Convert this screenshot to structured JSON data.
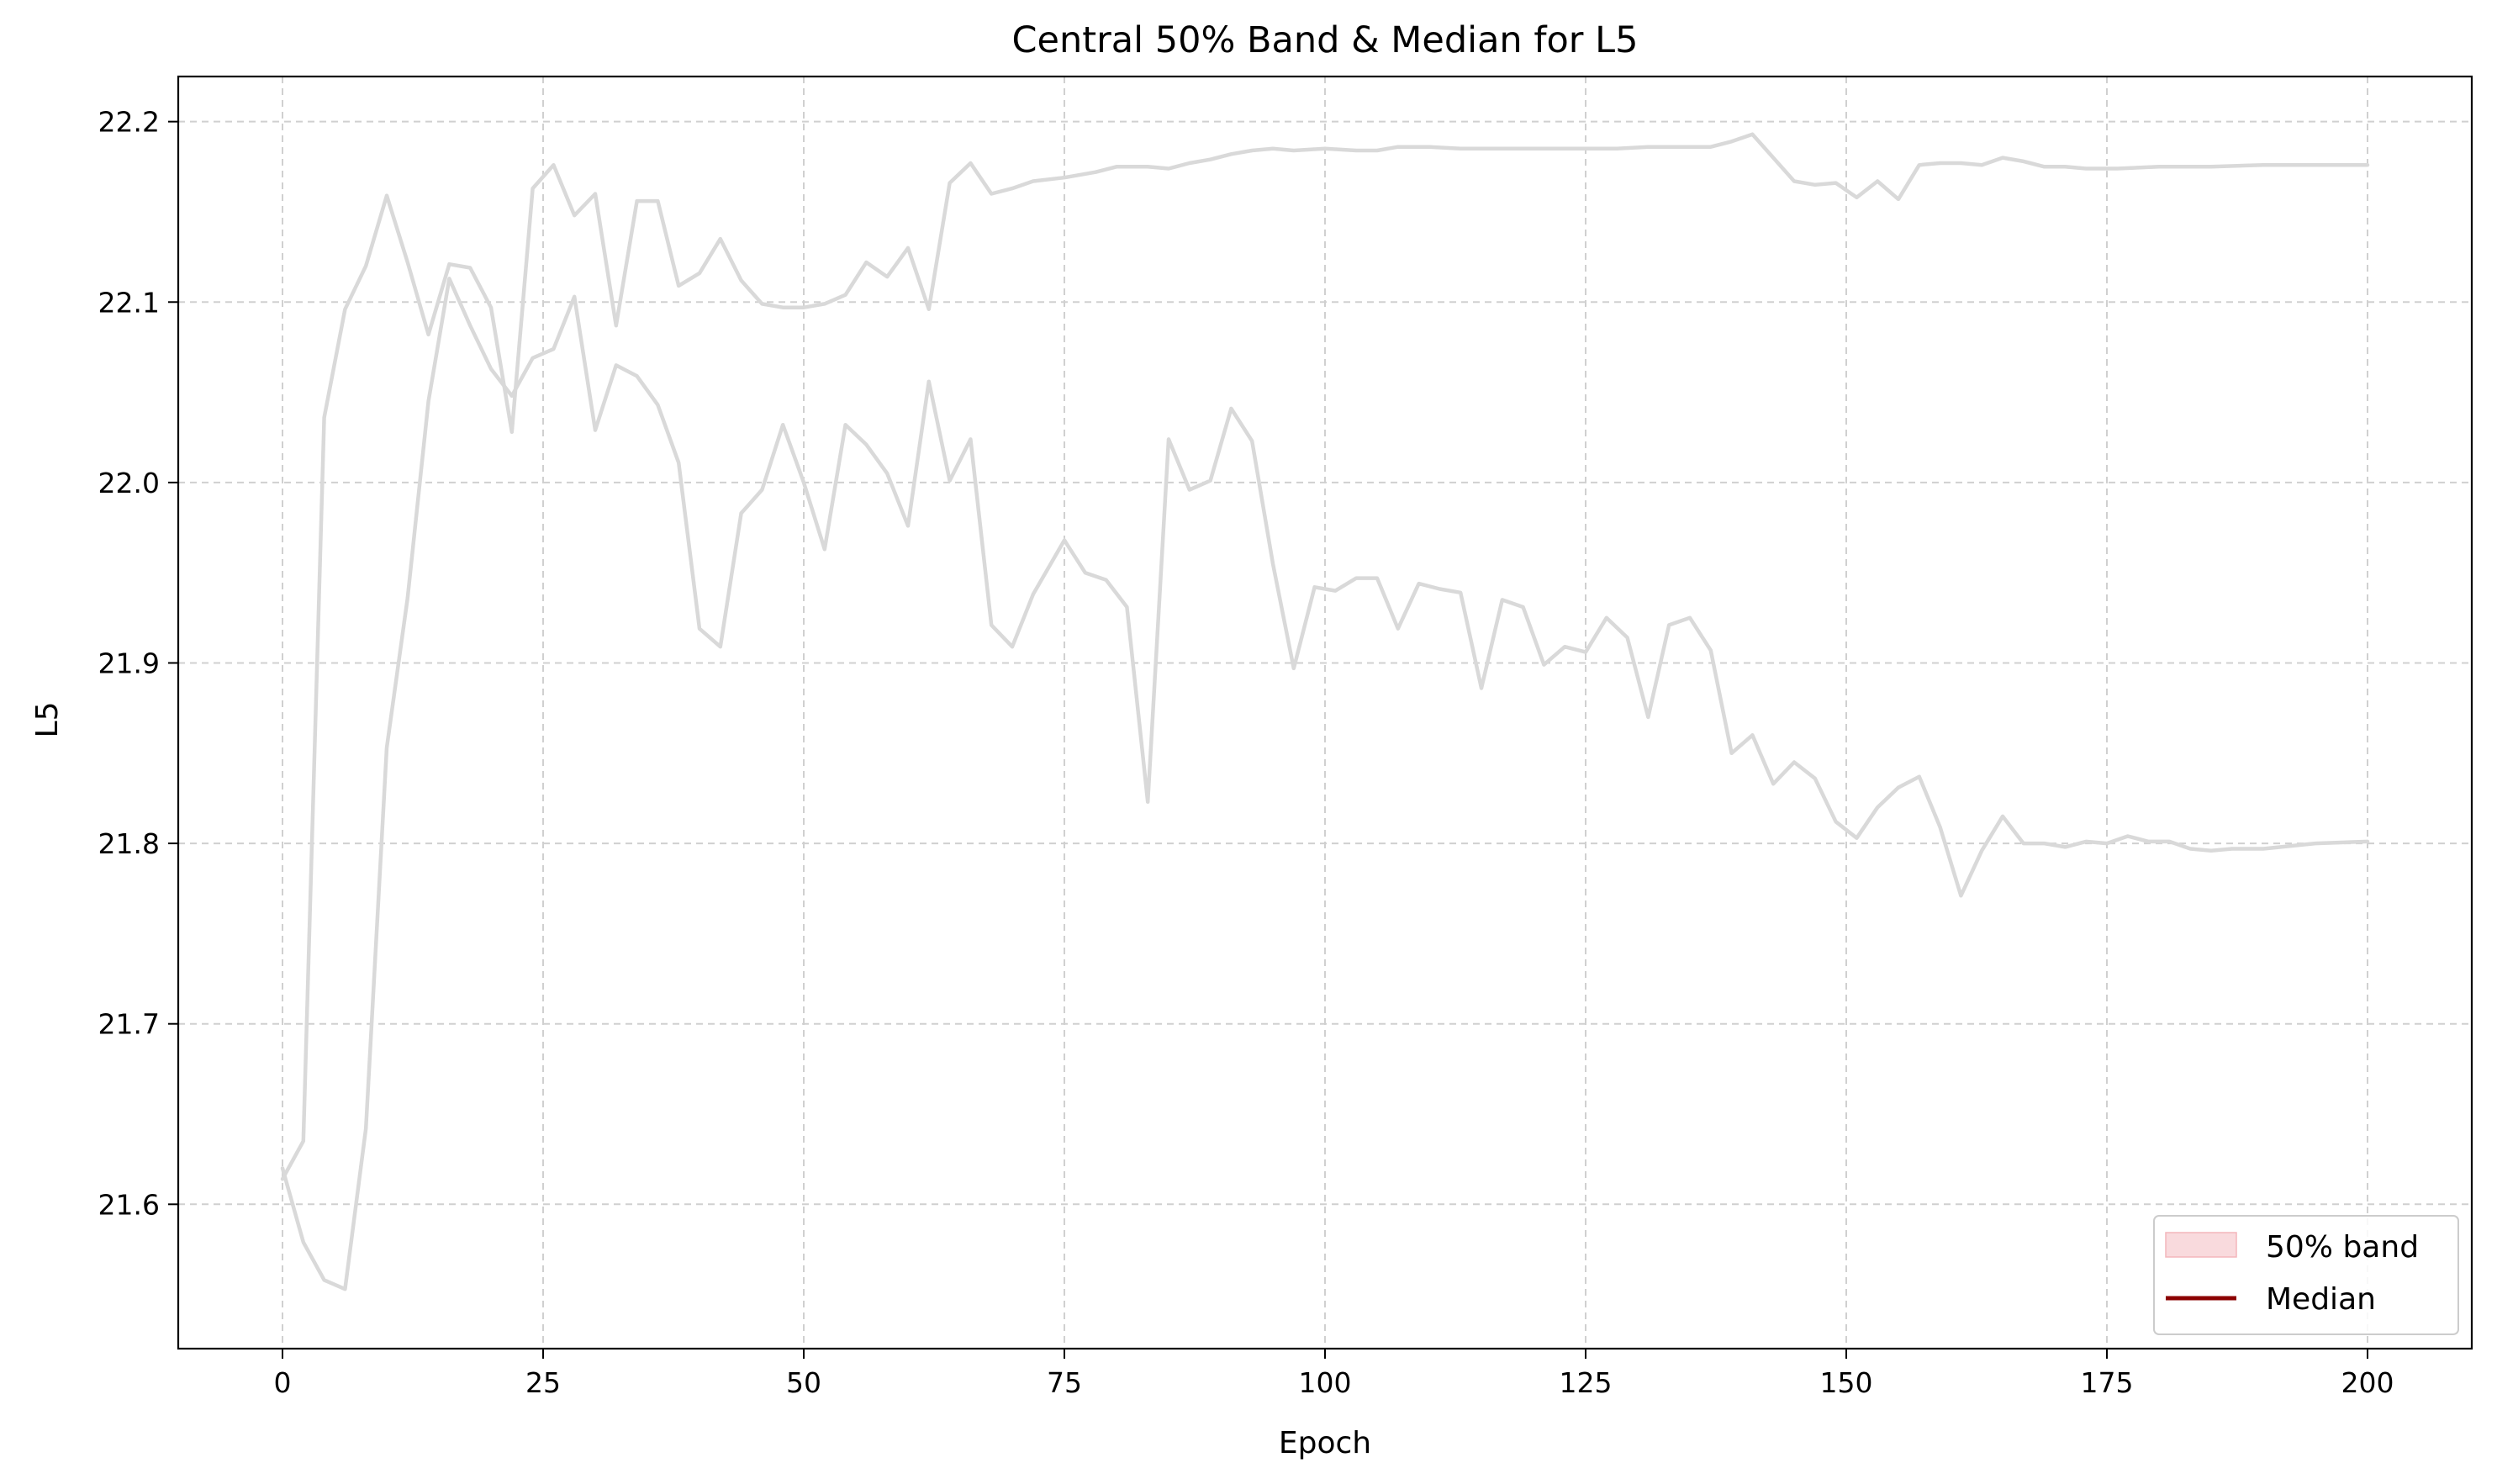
{
  "chart_data": {
    "type": "line",
    "title": "Central 50% Band & Median for L5",
    "xlabel": "Epoch",
    "ylabel": "L5",
    "xlim": [
      -10,
      210
    ],
    "ylim": [
      21.52,
      22.225
    ],
    "xticks": [
      0,
      25,
      50,
      75,
      100,
      125,
      150,
      175,
      200
    ],
    "yticks": [
      21.6,
      21.7,
      21.8,
      21.9,
      22.0,
      22.1,
      22.2
    ],
    "grid": true,
    "legend_position": "lower-right",
    "legend": [
      {
        "label": "50% band",
        "kind": "band",
        "color": "#f4b6bb"
      },
      {
        "label": "Median",
        "kind": "line",
        "color": "#8b0000"
      }
    ],
    "series": [
      {
        "role": "band-upper",
        "color": "#d9d9d9",
        "x": [
          0,
          2,
          4,
          6,
          8,
          10,
          12,
          14,
          16,
          18,
          20,
          22,
          24,
          26,
          28,
          30,
          32,
          34,
          36,
          38,
          40,
          42,
          44,
          46,
          48,
          50,
          52,
          54,
          56,
          58,
          60,
          62,
          64,
          66,
          68,
          70,
          72,
          75,
          78,
          80,
          83,
          85,
          87,
          89,
          91,
          93,
          95,
          97,
          100,
          103,
          105,
          107,
          110,
          113,
          115,
          118,
          121,
          125,
          128,
          131,
          134,
          137,
          139,
          141,
          143,
          145,
          147,
          149,
          151,
          153,
          155,
          157,
          159,
          161,
          163,
          165,
          167,
          169,
          171,
          173,
          176,
          180,
          185,
          190,
          195,
          200
        ],
        "y": [
          21.614,
          21.635,
          22.036,
          22.096,
          22.12,
          22.159,
          22.122,
          22.082,
          22.121,
          22.119,
          22.097,
          22.028,
          22.163,
          22.176,
          22.148,
          22.16,
          22.087,
          22.156,
          22.156,
          22.109,
          22.116,
          22.135,
          22.112,
          22.099,
          22.097,
          22.097,
          22.099,
          22.104,
          22.122,
          22.114,
          22.13,
          22.096,
          22.166,
          22.177,
          22.16,
          22.163,
          22.167,
          22.169,
          22.172,
          22.175,
          22.175,
          22.174,
          22.177,
          22.179,
          22.182,
          22.184,
          22.185,
          22.184,
          22.185,
          22.184,
          22.184,
          22.186,
          22.186,
          22.185,
          22.185,
          22.185,
          22.185,
          22.185,
          22.185,
          22.186,
          22.186,
          22.186,
          22.189,
          22.193,
          22.18,
          22.167,
          22.165,
          22.166,
          22.158,
          22.167,
          22.157,
          22.176,
          22.177,
          22.177,
          22.176,
          22.18,
          22.178,
          22.175,
          22.175,
          22.174,
          22.174,
          22.175,
          22.175,
          22.176,
          22.176,
          22.176
        ]
      },
      {
        "role": "band-lower",
        "color": "#d9d9d9",
        "x": [
          0,
          2,
          4,
          6,
          8,
          10,
          12,
          14,
          16,
          18,
          20,
          22,
          24,
          26,
          28,
          30,
          32,
          34,
          36,
          38,
          40,
          42,
          44,
          46,
          48,
          50,
          52,
          54,
          56,
          58,
          60,
          62,
          64,
          66,
          68,
          70,
          72,
          75,
          77,
          79,
          81,
          83,
          85,
          87,
          89,
          91,
          93,
          95,
          97,
          99,
          101,
          103,
          105,
          107,
          109,
          111,
          113,
          115,
          117,
          119,
          121,
          123,
          125,
          127,
          129,
          131,
          133,
          135,
          137,
          139,
          141,
          143,
          145,
          147,
          149,
          151,
          153,
          155,
          157,
          159,
          161,
          163,
          165,
          167,
          169,
          171,
          173,
          175,
          177,
          179,
          181,
          183,
          185,
          187,
          190,
          195,
          200
        ],
        "y": [
          21.62,
          21.579,
          21.558,
          21.553,
          21.642,
          21.853,
          21.936,
          22.045,
          22.113,
          22.087,
          22.063,
          22.048,
          22.069,
          22.074,
          22.103,
          22.029,
          22.065,
          22.059,
          22.043,
          22.011,
          21.919,
          21.909,
          21.983,
          21.996,
          22.032,
          22.0,
          21.963,
          22.032,
          22.021,
          22.005,
          21.976,
          22.056,
          22.001,
          22.024,
          21.921,
          21.909,
          21.938,
          21.968,
          21.95,
          21.946,
          21.931,
          21.823,
          22.024,
          21.996,
          22.001,
          22.041,
          22.023,
          21.955,
          21.897,
          21.942,
          21.94,
          21.947,
          21.947,
          21.919,
          21.944,
          21.941,
          21.939,
          21.886,
          21.935,
          21.931,
          21.899,
          21.909,
          21.906,
          21.925,
          21.914,
          21.87,
          21.921,
          21.925,
          21.907,
          21.85,
          21.86,
          21.833,
          21.845,
          21.836,
          21.812,
          21.803,
          21.82,
          21.831,
          21.837,
          21.809,
          21.771,
          21.796,
          21.815,
          21.8,
          21.8,
          21.798,
          21.801,
          21.8,
          21.804,
          21.801,
          21.801,
          21.797,
          21.796,
          21.797,
          21.797,
          21.8,
          21.801
        ]
      }
    ]
  }
}
